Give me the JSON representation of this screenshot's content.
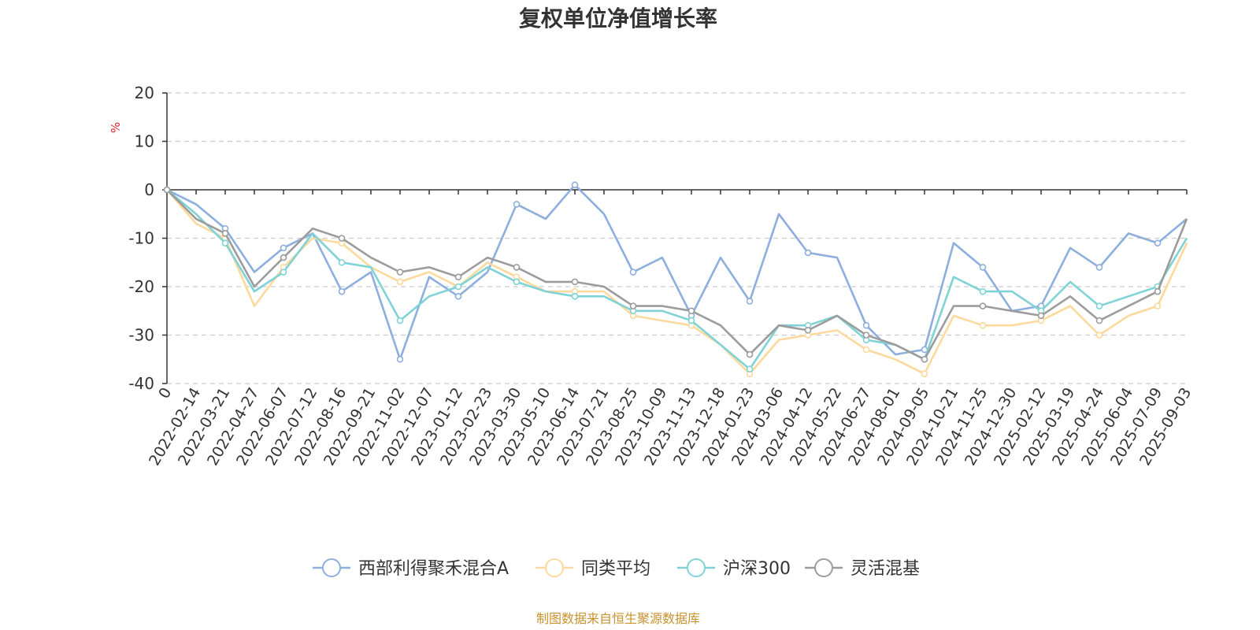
{
  "chart_data": {
    "type": "line",
    "title": "复权单位净值增长率",
    "ylabel": "%",
    "ylim": [
      -40,
      20
    ],
    "yticks": [
      20,
      10,
      0,
      -10,
      -20,
      -30,
      -40
    ],
    "grid": true,
    "legend_position": "bottom",
    "categories": [
      "0",
      "2022-02-14",
      "2022-03-21",
      "2022-04-27",
      "2022-06-07",
      "2022-07-12",
      "2022-08-16",
      "2022-09-21",
      "2022-11-02",
      "2022-12-07",
      "2023-01-12",
      "2023-02-23",
      "2023-03-30",
      "2023-05-10",
      "2023-06-14",
      "2023-07-21",
      "2023-08-25",
      "2023-10-09",
      "2023-11-13",
      "2023-12-18",
      "2024-01-23",
      "2024-03-06",
      "2024-04-12",
      "2024-05-22",
      "2024-06-27",
      "2024-08-01",
      "2024-09-05",
      "2024-10-21",
      "2024-11-25",
      "2024-12-30",
      "2025-02-12",
      "2025-03-19",
      "2025-04-24",
      "2025-06-04",
      "2025-07-09",
      "2025-09-03"
    ],
    "series": [
      {
        "name": "西部利得聚禾混合A",
        "color": "#8eaede",
        "values": [
          0,
          -3,
          -8,
          -17,
          -12,
          -9,
          -21,
          -17,
          -35,
          -18,
          -22,
          -17,
          -3,
          -6,
          1,
          -5,
          -17,
          -14,
          -26,
          -14,
          -23,
          -5,
          -13,
          -14,
          -28,
          -34,
          -33,
          -11,
          -16,
          -25,
          -24,
          -12,
          -16,
          -9,
          -11,
          -6
        ]
      },
      {
        "name": "同类平均",
        "color": "#fcd99c",
        "values": [
          0,
          -7,
          -10,
          -24,
          -16,
          -10,
          -11,
          -16,
          -19,
          -17,
          -20,
          -15,
          -18,
          -21,
          -21,
          -21,
          -26,
          -27,
          -28,
          -32,
          -38,
          -31,
          -30,
          -29,
          -33,
          -35,
          -38,
          -26,
          -28,
          -28,
          -27,
          -24,
          -30,
          -26,
          -24,
          -11
        ]
      },
      {
        "name": "沪深300",
        "color": "#7fd3d6",
        "values": [
          0,
          -5,
          -11,
          -21,
          -17,
          -9,
          -15,
          -16,
          -27,
          -22,
          -20,
          -16,
          -19,
          -21,
          -22,
          -22,
          -25,
          -25,
          -27,
          -32,
          -37,
          -28,
          -28,
          -26,
          -31,
          -32,
          -35,
          -18,
          -21,
          -21,
          -25,
          -19,
          -24,
          -22,
          -20,
          -10
        ]
      },
      {
        "name": "灵活混基",
        "color": "#9c9c9c",
        "values": [
          0,
          -6,
          -9,
          -20,
          -14,
          -8,
          -10,
          -14,
          -17,
          -16,
          -18,
          -14,
          -16,
          -19,
          -19,
          -20,
          -24,
          -24,
          -25,
          -28,
          -34,
          -28,
          -29,
          -26,
          -30,
          -32,
          -35,
          -24,
          -24,
          -25,
          -26,
          -22,
          -27,
          -24,
          -21,
          -6
        ]
      }
    ]
  },
  "source_note": "制图数据来自恒生聚源数据库"
}
